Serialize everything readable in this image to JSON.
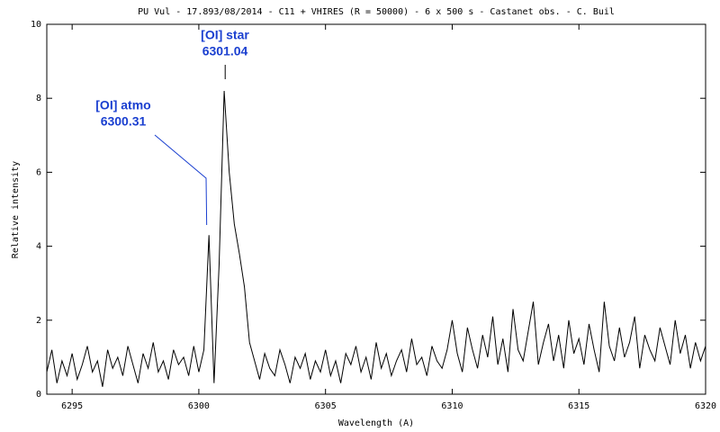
{
  "chart_data": {
    "type": "line",
    "title": "PU Vul - 17.893/08/2014 - C11 + VHIRES (R = 50000) - 6 x 500 s - Castanet obs. - C. Buil",
    "x_label": "Wavelength (A)",
    "y_label": "Relative intensity",
    "xlim": [
      6294,
      6320
    ],
    "ylim": [
      0,
      10
    ],
    "xticks": [
      6295,
      6300,
      6305,
      6310,
      6315,
      6320
    ],
    "yticks": [
      0,
      2,
      4,
      6,
      8,
      10
    ],
    "color": "#000000",
    "annotation_color": "#1a3fd0",
    "annotations": [
      {
        "text": "[OI] star",
        "value": 6301.04
      },
      {
        "text": "[OI] atmo",
        "value": 6300.31
      }
    ],
    "x": [
      6294,
      6294.2,
      6294.4,
      6294.6,
      6294.8,
      6295,
      6295.2,
      6295.4,
      6295.6,
      6295.8,
      6296,
      6296.2,
      6296.4,
      6296.6,
      6296.8,
      6297,
      6297.2,
      6297.4,
      6297.6,
      6297.8,
      6298,
      6298.2,
      6298.4,
      6298.6,
      6298.8,
      6299,
      6299.2,
      6299.4,
      6299.6,
      6299.8,
      6300,
      6300.2,
      6300.4,
      6300.6,
      6300.8,
      6301,
      6301.2,
      6301.4,
      6301.6,
      6301.8,
      6302,
      6302.2,
      6302.4,
      6302.6,
      6302.8,
      6303,
      6303.2,
      6303.4,
      6303.6,
      6303.8,
      6304,
      6304.2,
      6304.4,
      6304.6,
      6304.8,
      6305,
      6305.2,
      6305.4,
      6305.6,
      6305.8,
      6306,
      6306.2,
      6306.4,
      6306.6,
      6306.8,
      6307,
      6307.2,
      6307.4,
      6307.6,
      6307.8,
      6308,
      6308.2,
      6308.4,
      6308.6,
      6308.8,
      6309,
      6309.2,
      6309.4,
      6309.6,
      6309.8,
      6310,
      6310.2,
      6310.4,
      6310.6,
      6310.8,
      6311,
      6311.2,
      6311.4,
      6311.6,
      6311.8,
      6312,
      6312.2,
      6312.4,
      6312.6,
      6312.8,
      6313,
      6313.2,
      6313.4,
      6313.6,
      6313.8,
      6314,
      6314.2,
      6314.4,
      6314.6,
      6314.8,
      6315,
      6315.2,
      6315.4,
      6315.6,
      6315.8,
      6316,
      6316.2,
      6316.4,
      6316.6,
      6316.8,
      6317,
      6317.2,
      6317.4,
      6317.6,
      6317.8,
      6318,
      6318.2,
      6318.4,
      6318.6,
      6318.8,
      6319,
      6319.2,
      6319.4,
      6319.6,
      6319.8,
      6320
    ],
    "values": [
      0.6,
      1.2,
      0.3,
      0.9,
      0.5,
      1.1,
      0.4,
      0.8,
      1.3,
      0.6,
      0.9,
      0.2,
      1.2,
      0.7,
      1.0,
      0.5,
      1.3,
      0.8,
      0.3,
      1.1,
      0.7,
      1.4,
      0.6,
      0.9,
      0.4,
      1.2,
      0.8,
      1.0,
      0.5,
      1.3,
      0.6,
      1.2,
      4.3,
      0.3,
      3.5,
      8.2,
      6.0,
      4.6,
      3.8,
      2.9,
      1.4,
      0.9,
      0.4,
      1.1,
      0.7,
      0.5,
      1.2,
      0.8,
      0.3,
      1.0,
      0.7,
      1.1,
      0.4,
      0.9,
      0.6,
      1.2,
      0.5,
      0.9,
      0.3,
      1.1,
      0.8,
      1.3,
      0.6,
      1.0,
      0.4,
      1.4,
      0.7,
      1.1,
      0.5,
      0.9,
      1.2,
      0.6,
      1.5,
      0.8,
      1.0,
      0.5,
      1.3,
      0.9,
      0.7,
      1.2,
      2.0,
      1.1,
      0.6,
      1.8,
      1.2,
      0.7,
      1.6,
      1.0,
      2.1,
      0.8,
      1.5,
      0.6,
      2.3,
      1.2,
      0.9,
      1.7,
      2.5,
      0.8,
      1.4,
      1.9,
      0.9,
      1.6,
      0.7,
      2.0,
      1.1,
      1.5,
      0.8,
      1.9,
      1.2,
      0.6,
      2.5,
      1.3,
      0.9,
      1.8,
      1.0,
      1.4,
      2.1,
      0.7,
      1.6,
      1.2,
      0.9,
      1.8,
      1.3,
      0.8,
      2.0,
      1.1,
      1.6,
      0.7,
      1.4,
      0.9,
      1.3
    ]
  }
}
